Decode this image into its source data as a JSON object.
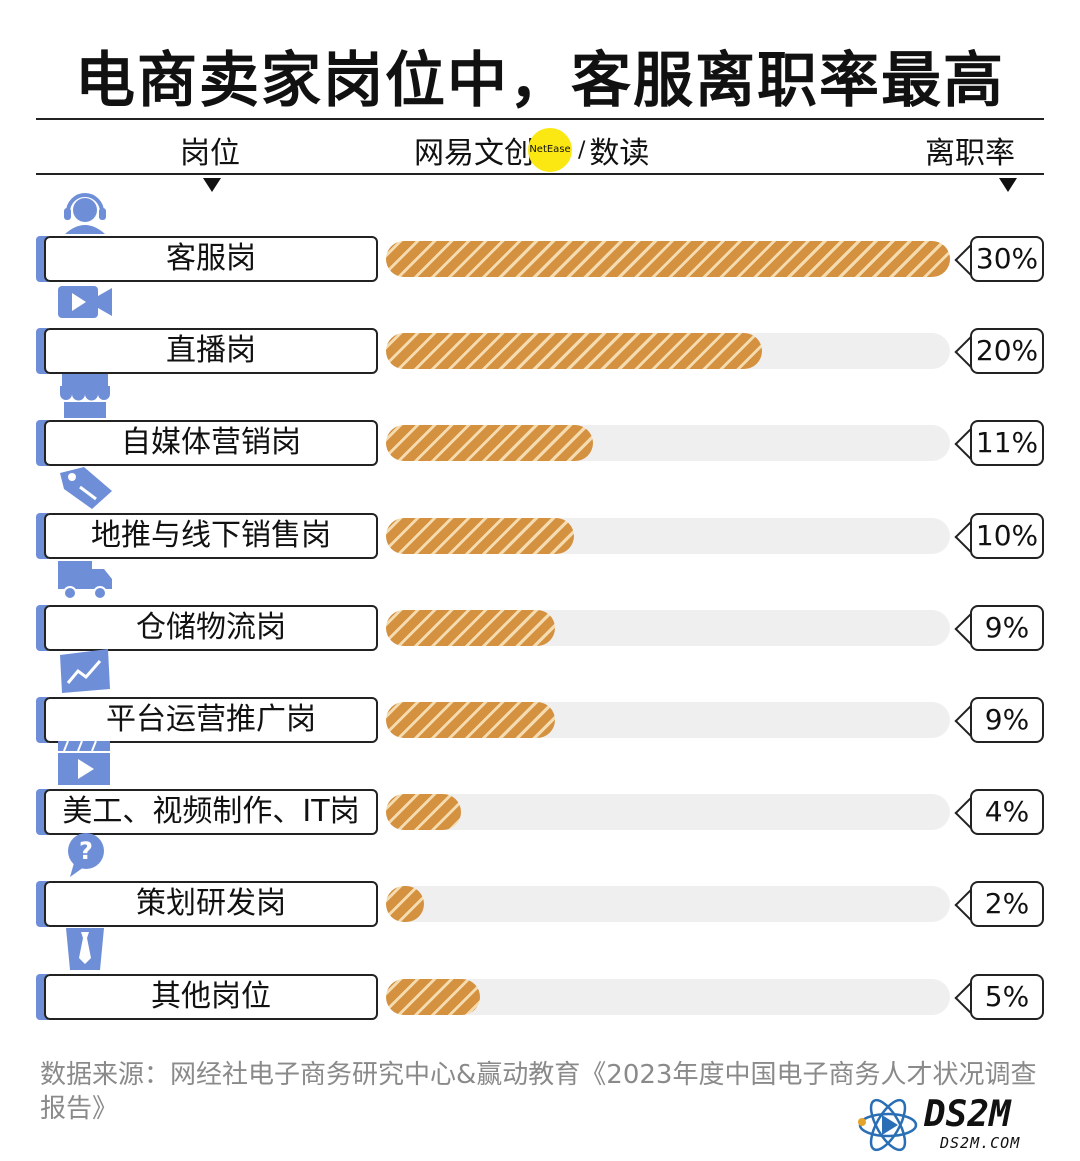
{
  "title": "电商卖家岗位中，客服离职率最高",
  "header": {
    "col_position": "岗位",
    "col_rate": "离职率",
    "logo_main": "网易文创",
    "logo_badge": "NetEase",
    "logo_slash": "/",
    "logo_sub": "数读"
  },
  "colors": {
    "bar_fill": "#d49240",
    "bar_stripe": "#f5dcb0",
    "track": "#efefef",
    "icon_blue": "#6e8fd8",
    "logo_yellow": "#fbe812"
  },
  "chart_data": {
    "type": "bar",
    "orientation": "horizontal",
    "title": "电商卖家岗位中，客服离职率最高",
    "xlabel": "离职率",
    "ylabel": "岗位",
    "xlim": [
      0,
      30
    ],
    "categories": [
      "客服岗",
      "直播岗",
      "自媒体营销岗",
      "地推与线下销售岗",
      "仓储物流岗",
      "平台运营推广岗",
      "美工、视频制作、IT岗",
      "策划研发岗",
      "其他岗位"
    ],
    "values": [
      30,
      20,
      11,
      10,
      9,
      9,
      4,
      2,
      5
    ],
    "value_labels": [
      "30%",
      "20%",
      "11%",
      "10%",
      "9%",
      "9%",
      "4%",
      "2%",
      "5%"
    ],
    "icons": [
      "headset-icon",
      "video-camera-icon",
      "shop-awning-icon",
      "price-tag-icon",
      "delivery-truck-icon",
      "trend-chart-icon",
      "video-player-icon",
      "question-bubble-icon",
      "shirt-tie-icon"
    ]
  },
  "source": "数据来源：网经社电子商务研究中心&赢动教育《2023年度中国电子商务人才状况调查报告》",
  "watermark": {
    "big": "DS2M",
    "small": "DS2M.COM"
  }
}
